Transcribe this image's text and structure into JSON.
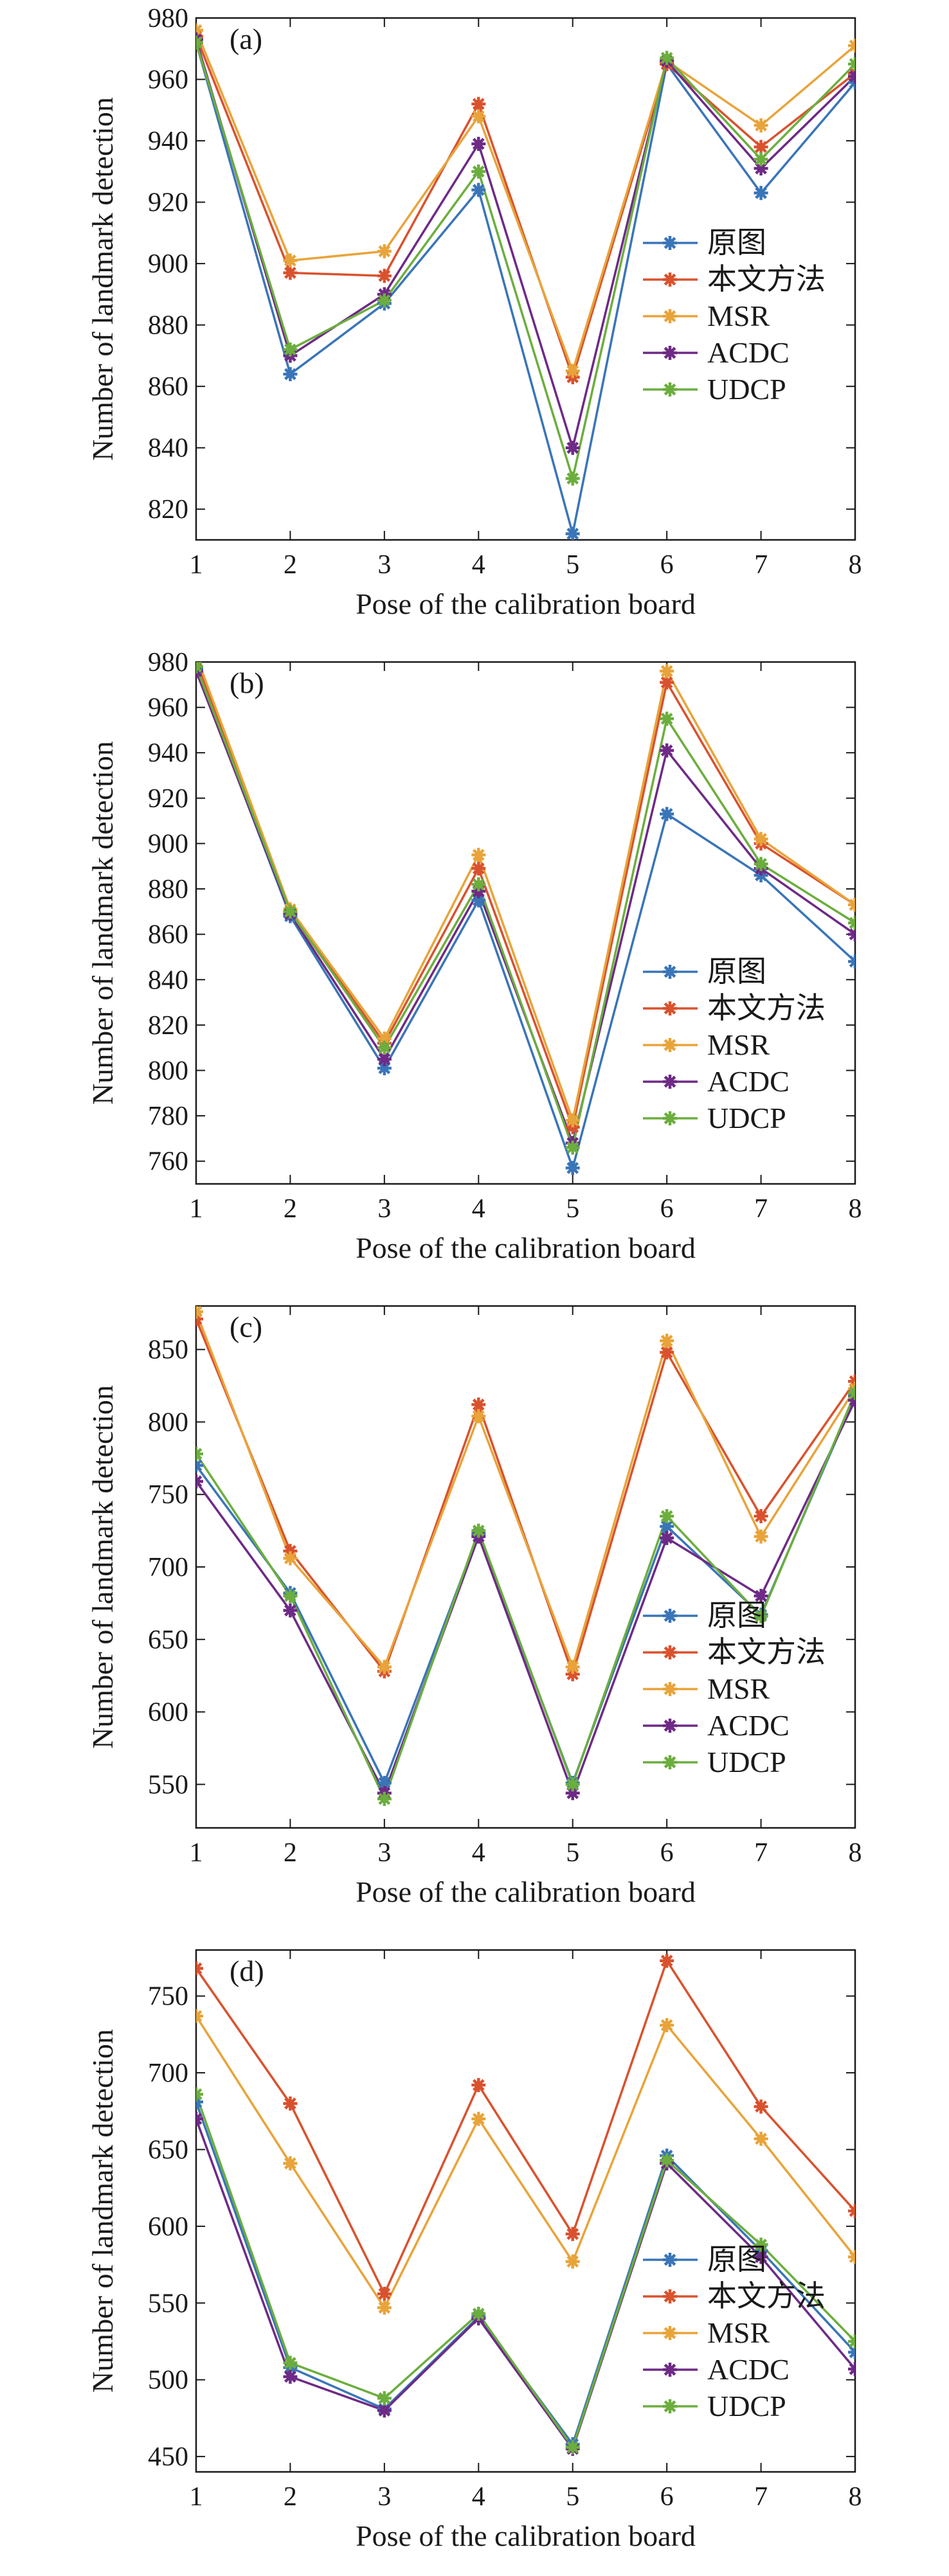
{
  "chart_data": [
    {
      "type": "line",
      "panel_label": "(a)",
      "xlabel": "Pose of the calibration board",
      "ylabel": "Number of landmark detection",
      "categories": [
        "1",
        "2",
        "3",
        "4",
        "5",
        "6",
        "7",
        "8"
      ],
      "ylim": [
        810,
        980
      ],
      "yticks": [
        820,
        840,
        860,
        880,
        900,
        920,
        940,
        960,
        980
      ],
      "legend_position": "center-right",
      "series": [
        {
          "name": "原图",
          "color": "#3a75b8",
          "values": [
            972,
            864,
            887,
            924,
            812,
            965,
            923,
            959
          ]
        },
        {
          "name": "本文方法",
          "color": "#d9522e",
          "values": [
            974,
            897,
            896,
            952,
            863,
            965,
            938,
            962
          ]
        },
        {
          "name": "MSR",
          "color": "#e8a43a",
          "values": [
            976,
            901,
            904,
            948,
            865,
            966,
            945,
            971
          ]
        },
        {
          "name": "ACDC",
          "color": "#6e2a86",
          "values": [
            973,
            870,
            890,
            939,
            840,
            966,
            931,
            961
          ]
        },
        {
          "name": "UDCP",
          "color": "#6cae3e",
          "values": [
            972,
            872,
            888,
            930,
            830,
            967,
            934,
            965
          ]
        }
      ]
    },
    {
      "type": "line",
      "panel_label": "(b)",
      "xlabel": "Pose of the calibration board",
      "ylabel": "Number of landmark detection",
      "categories": [
        "1",
        "2",
        "3",
        "4",
        "5",
        "6",
        "7",
        "8"
      ],
      "ylim": [
        750,
        980
      ],
      "yticks": [
        760,
        780,
        800,
        820,
        840,
        860,
        880,
        900,
        920,
        940,
        960,
        980
      ],
      "legend_position": "bottom-right",
      "series": [
        {
          "name": "原图",
          "color": "#3a75b8",
          "values": [
            977,
            868,
            801,
            875,
            757,
            913,
            886,
            848
          ]
        },
        {
          "name": "本文方法",
          "color": "#d9522e",
          "values": [
            981,
            870,
            812,
            889,
            775,
            971,
            900,
            873
          ]
        },
        {
          "name": "MSR",
          "color": "#e8a43a",
          "values": [
            983,
            871,
            814,
            895,
            778,
            976,
            902,
            873
          ]
        },
        {
          "name": "ACDC",
          "color": "#6e2a86",
          "values": [
            976,
            869,
            805,
            879,
            768,
            941,
            889,
            860
          ]
        },
        {
          "name": "UDCP",
          "color": "#6cae3e",
          "values": [
            978,
            870,
            810,
            882,
            766,
            955,
            891,
            865
          ]
        }
      ]
    },
    {
      "type": "line",
      "panel_label": "(c)",
      "xlabel": "Pose of the calibration board",
      "ylabel": "Number of landmark detection",
      "categories": [
        "1",
        "2",
        "3",
        "4",
        "5",
        "6",
        "7",
        "8"
      ],
      "ylim": [
        520,
        880
      ],
      "yticks": [
        550,
        600,
        650,
        700,
        750,
        800,
        850
      ],
      "legend_position": "bottom-right",
      "series": [
        {
          "name": "原图",
          "color": "#3a75b8",
          "values": [
            770,
            682,
            551,
            723,
            551,
            728,
            667,
            818
          ]
        },
        {
          "name": "本文方法",
          "color": "#d9522e",
          "values": [
            871,
            711,
            628,
            812,
            626,
            848,
            735,
            828
          ]
        },
        {
          "name": "MSR",
          "color": "#e8a43a",
          "values": [
            876,
            706,
            631,
            804,
            631,
            856,
            721,
            823
          ]
        },
        {
          "name": "ACDC",
          "color": "#6e2a86",
          "values": [
            759,
            670,
            544,
            721,
            544,
            720,
            680,
            815
          ]
        },
        {
          "name": "UDCP",
          "color": "#6cae3e",
          "values": [
            778,
            680,
            540,
            725,
            550,
            735,
            666,
            820
          ]
        }
      ]
    },
    {
      "type": "line",
      "panel_label": "(d)",
      "xlabel": "Pose of the calibration board",
      "ylabel": "Number of landmark detection",
      "categories": [
        "1",
        "2",
        "3",
        "4",
        "5",
        "6",
        "7",
        "8"
      ],
      "ylim": [
        440,
        780
      ],
      "yticks": [
        450,
        500,
        550,
        600,
        650,
        700,
        750
      ],
      "legend_position": "bottom-right",
      "series": [
        {
          "name": "原图",
          "color": "#3a75b8",
          "values": [
            681,
            508,
            481,
            541,
            458,
            646,
            584,
            518
          ]
        },
        {
          "name": "本文方法",
          "color": "#d9522e",
          "values": [
            768,
            680,
            556,
            692,
            595,
            773,
            678,
            610
          ]
        },
        {
          "name": "MSR",
          "color": "#e8a43a",
          "values": [
            737,
            641,
            547,
            670,
            577,
            731,
            657,
            580
          ]
        },
        {
          "name": "ACDC",
          "color": "#6e2a86",
          "values": [
            670,
            502,
            480,
            540,
            455,
            641,
            580,
            507
          ]
        },
        {
          "name": "UDCP",
          "color": "#6cae3e",
          "values": [
            686,
            511,
            488,
            543,
            456,
            643,
            588,
            525
          ]
        }
      ]
    }
  ]
}
